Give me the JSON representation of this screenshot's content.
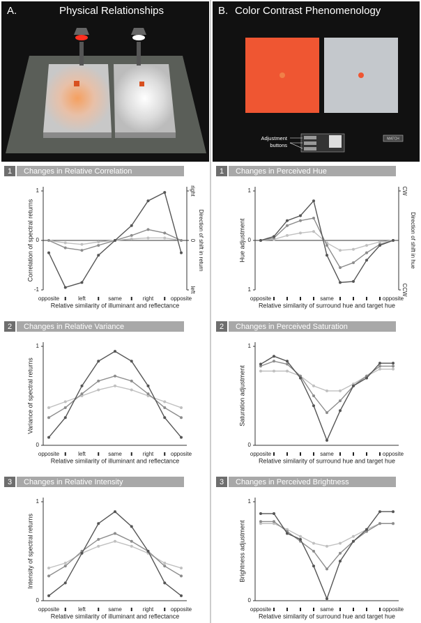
{
  "panels": [
    {
      "letter": "A.",
      "title": "Physical Relationships"
    },
    {
      "letter": "B.",
      "title": "Color Contrast Phenomenology"
    }
  ],
  "controls": {
    "label_lines": [
      "Adjustment",
      "buttons"
    ],
    "match": "MATCH"
  },
  "chart_data": [
    {
      "type": "line",
      "number": 1,
      "title": "Changes in Relative Correlation",
      "ylabel": "Correlation of spectral returns",
      "y2label": "Direction of shift in return",
      "xlabel": "Relative similarity of illuminant and reflectance",
      "categories": [
        "opposite",
        null,
        "left",
        null,
        "same",
        null,
        "right",
        null,
        "opposite"
      ],
      "ylim": [
        -1,
        1
      ],
      "yticks": [
        -1,
        0,
        1
      ],
      "y2lim": [
        -1,
        1
      ],
      "y2ticks": [
        {
          "value": -1,
          "label": "left"
        },
        0,
        {
          "value": 1,
          "label": "right"
        }
      ],
      "series": [
        {
          "color": "#555555",
          "values": [
            -0.25,
            -0.95,
            -0.85,
            -0.3,
            0,
            0.3,
            0.8,
            0.97,
            -0.25
          ]
        },
        {
          "color": "#8c8c8c",
          "values": [
            0,
            -0.15,
            -0.2,
            -0.1,
            0,
            0.1,
            0.22,
            0.15,
            0
          ]
        },
        {
          "color": "#c0c0c0",
          "values": [
            0,
            -0.05,
            -0.08,
            -0.03,
            0,
            0.03,
            0.05,
            0.05,
            0
          ]
        }
      ]
    },
    {
      "type": "line",
      "number": 2,
      "title": "Changes in Relative Variance",
      "ylabel": "Variance of spectral returns",
      "xlabel": "Relative similarity of illuminant and reflectance",
      "categories": [
        "opposite",
        null,
        "left",
        null,
        "same",
        null,
        "right",
        null,
        "opposite"
      ],
      "ylim": [
        0,
        1
      ],
      "yticks": [
        0,
        1
      ],
      "series": [
        {
          "color": "#555555",
          "values": [
            0.08,
            0.28,
            0.6,
            0.85,
            0.95,
            0.85,
            0.6,
            0.28,
            0.08
          ]
        },
        {
          "color": "#8c8c8c",
          "values": [
            0.28,
            0.38,
            0.52,
            0.65,
            0.7,
            0.65,
            0.52,
            0.38,
            0.28
          ]
        },
        {
          "color": "#c0c0c0",
          "values": [
            0.38,
            0.44,
            0.5,
            0.56,
            0.6,
            0.56,
            0.5,
            0.44,
            0.38
          ]
        }
      ]
    },
    {
      "type": "line",
      "number": 3,
      "title": "Changes in Relative Intensity",
      "ylabel": "Intensity of spectral returns",
      "xlabel": "Relative similarity of illuminant and reflectance",
      "categories": [
        "opposite",
        null,
        "left",
        null,
        "same",
        null,
        "right",
        null,
        "opposite"
      ],
      "ylim": [
        0,
        1
      ],
      "yticks": [
        0,
        1
      ],
      "series": [
        {
          "color": "#555555",
          "values": [
            0.05,
            0.18,
            0.48,
            0.78,
            0.9,
            0.75,
            0.5,
            0.18,
            0.05
          ]
        },
        {
          "color": "#8c8c8c",
          "values": [
            0.25,
            0.35,
            0.5,
            0.62,
            0.68,
            0.6,
            0.5,
            0.35,
            0.25
          ]
        },
        {
          "color": "#c0c0c0",
          "values": [
            0.33,
            0.38,
            0.48,
            0.55,
            0.6,
            0.55,
            0.48,
            0.38,
            0.33
          ]
        }
      ]
    },
    {
      "type": "line",
      "number": 1,
      "title": "Changes in Perceived Hue",
      "ylabel": "Hue adjustment",
      "y2label": "Direction of shift in hue",
      "xlabel": "Relative similarity of surround hue and target hue",
      "categories": [
        "opposite",
        null,
        null,
        null,
        null,
        "same",
        null,
        null,
        null,
        null,
        "opposite"
      ],
      "ylim": [
        -1,
        1
      ],
      "yticks": [
        {
          "value": -1,
          "label": "1"
        },
        0,
        1
      ],
      "y2lim": [
        -1,
        1
      ],
      "y2ticks": [
        {
          "value": -1,
          "label": "CCW"
        },
        {
          "value": 1,
          "label": "CW"
        }
      ],
      "series": [
        {
          "color": "#555555",
          "values": [
            0,
            0.08,
            0.4,
            0.5,
            0.8,
            -0.3,
            -0.85,
            -0.83,
            -0.4,
            -0.1,
            0
          ]
        },
        {
          "color": "#8c8c8c",
          "values": [
            0,
            0.05,
            0.3,
            0.4,
            0.45,
            -0.1,
            -0.55,
            -0.45,
            -0.25,
            -0.08,
            0
          ]
        },
        {
          "color": "#c0c0c0",
          "values": [
            0,
            0.02,
            0.1,
            0.15,
            0.18,
            -0.05,
            -0.2,
            -0.18,
            -0.1,
            -0.03,
            0
          ]
        }
      ]
    },
    {
      "type": "line",
      "number": 2,
      "title": "Changes in Perceived Saturation",
      "ylabel": "Saturation adjustment",
      "xlabel": "Relative similarity of surround hue and target hue",
      "categories": [
        "opposite",
        null,
        null,
        null,
        null,
        "same",
        null,
        null,
        null,
        null,
        "opposite"
      ],
      "ylim": [
        0,
        1
      ],
      "yticks": [
        0,
        1
      ],
      "series": [
        {
          "color": "#555555",
          "values": [
            0.82,
            0.9,
            0.85,
            0.68,
            0.4,
            0.05,
            0.35,
            0.6,
            0.68,
            0.83,
            0.83
          ]
        },
        {
          "color": "#8c8c8c",
          "values": [
            0.8,
            0.85,
            0.82,
            0.7,
            0.5,
            0.33,
            0.45,
            0.6,
            0.7,
            0.8,
            0.8
          ]
        },
        {
          "color": "#c0c0c0",
          "values": [
            0.75,
            0.75,
            0.75,
            0.7,
            0.6,
            0.55,
            0.55,
            0.62,
            0.7,
            0.77,
            0.77
          ]
        }
      ]
    },
    {
      "type": "line",
      "number": 3,
      "title": "Changes in Perceived Brightness",
      "ylabel": "Brightness adjustment",
      "xlabel": "Relative similarity of surround hue and target hue",
      "categories": [
        "opposite",
        null,
        null,
        null,
        null,
        "same",
        null,
        null,
        null,
        null,
        "opposite"
      ],
      "ylim": [
        0,
        1
      ],
      "yticks": [
        0,
        1
      ],
      "series": [
        {
          "color": "#555555",
          "values": [
            0.88,
            0.88,
            0.68,
            0.62,
            0.35,
            0.02,
            0.4,
            0.6,
            0.72,
            0.9,
            0.9
          ]
        },
        {
          "color": "#8c8c8c",
          "values": [
            0.8,
            0.8,
            0.7,
            0.6,
            0.5,
            0.32,
            0.48,
            0.6,
            0.7,
            0.78,
            0.78
          ]
        },
        {
          "color": "#c0c0c0",
          "values": [
            0.78,
            0.78,
            0.72,
            0.65,
            0.58,
            0.55,
            0.58,
            0.65,
            0.72,
            0.78,
            0.78
          ]
        }
      ]
    }
  ]
}
